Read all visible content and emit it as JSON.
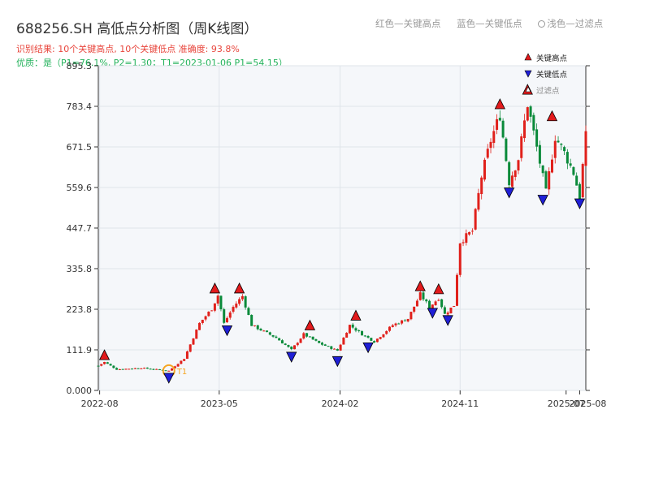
{
  "header": {
    "title": "688256.SH 高低点分析图（周K线图）",
    "result_line": "识别结果: 10个关键高点, 10个关键低点   准确度: 93.8%",
    "quality_line": "优质：是（P1=76.1%, P2=1.30；T1=2023-01-06 P1=54.15）"
  },
  "top_legend": {
    "red": "红色—关键高点",
    "blue": "蓝色—关键低点",
    "light": "浅色—过滤点"
  },
  "chart_legend": {
    "high": "关键高点",
    "low": "关键低点",
    "filtered": "过滤点"
  },
  "t1_label": "T1",
  "colors": {
    "up": "#e0201b",
    "down": "#0a8a3a",
    "high_marker": "#e31a1c",
    "low_marker": "#1f1fd6",
    "t1_ring": "#f5a623",
    "plot_bg": "#f5f7fa"
  },
  "chart_data": {
    "type": "candlestick",
    "period": "weekly",
    "ylim": [
      0,
      895.3
    ],
    "yticks": [
      "0.000",
      "111.9",
      "223.8",
      "335.8",
      "447.7",
      "559.6",
      "671.5",
      "783.4",
      "895.3"
    ],
    "xticks": [
      "2022-08",
      "2023-05",
      "2024-02",
      "2024-11",
      "2025-07",
      "2025-08"
    ],
    "x_start": "2022-07-29",
    "x_end": "2025-08-15",
    "anchors": [
      [
        "2022-07-29",
        68
      ],
      [
        "2022-08-12",
        78
      ],
      [
        "2022-09-09",
        58
      ],
      [
        "2022-11-04",
        62
      ],
      [
        "2023-01-06",
        54
      ],
      [
        "2023-02-10",
        88
      ],
      [
        "2023-03-17",
        185
      ],
      [
        "2023-04-14",
        225
      ],
      [
        "2023-04-28",
        262
      ],
      [
        "2023-05-12",
        185
      ],
      [
        "2023-06-02",
        230
      ],
      [
        "2023-06-23",
        260
      ],
      [
        "2023-07-14",
        180
      ],
      [
        "2023-09-08",
        145
      ],
      [
        "2023-10-13",
        112
      ],
      [
        "2023-11-10",
        155
      ],
      [
        "2023-12-15",
        130
      ],
      [
        "2024-01-26",
        110
      ],
      [
        "2024-02-23",
        180
      ],
      [
        "2024-03-22",
        155
      ],
      [
        "2024-04-19",
        135
      ],
      [
        "2024-05-31",
        180
      ],
      [
        "2024-07-05",
        198
      ],
      [
        "2024-08-02",
        265
      ],
      [
        "2024-08-23",
        230
      ],
      [
        "2024-09-13",
        255
      ],
      [
        "2024-09-27",
        210
      ],
      [
        "2024-10-18",
        235
      ],
      [
        "2024-11-01",
        410
      ],
      [
        "2024-11-29",
        440
      ],
      [
        "2024-12-20",
        590
      ],
      [
        "2025-01-10",
        690
      ],
      [
        "2025-01-31",
        760
      ],
      [
        "2025-02-21",
        575
      ],
      [
        "2025-03-14",
        640
      ],
      [
        "2025-04-04",
        790
      ],
      [
        "2025-04-25",
        670
      ],
      [
        "2025-05-16",
        545
      ],
      [
        "2025-06-06",
        700
      ],
      [
        "2025-06-27",
        655
      ],
      [
        "2025-07-18",
        600
      ],
      [
        "2025-08-01",
        535
      ],
      [
        "2025-08-08",
        620
      ],
      [
        "2025-08-15",
        700
      ]
    ],
    "key_highs": [
      {
        "date": "2022-08-12",
        "value": 78
      },
      {
        "date": "2023-04-21",
        "value": 262
      },
      {
        "date": "2023-06-16",
        "value": 262
      },
      {
        "date": "2023-11-24",
        "value": 160
      },
      {
        "date": "2024-03-08",
        "value": 187
      },
      {
        "date": "2024-08-02",
        "value": 268
      },
      {
        "date": "2024-09-13",
        "value": 260
      },
      {
        "date": "2025-01-31",
        "value": 770
      },
      {
        "date": "2025-04-04",
        "value": 810
      },
      {
        "date": "2025-05-30",
        "value": 737
      }
    ],
    "key_lows": [
      {
        "date": "2023-01-06",
        "value": 54
      },
      {
        "date": "2023-05-19",
        "value": 185
      },
      {
        "date": "2023-10-13",
        "value": 112
      },
      {
        "date": "2024-01-26",
        "value": 100
      },
      {
        "date": "2024-04-05",
        "value": 138
      },
      {
        "date": "2024-08-30",
        "value": 233
      },
      {
        "date": "2024-10-04",
        "value": 213
      },
      {
        "date": "2025-02-21",
        "value": 565
      },
      {
        "date": "2025-05-09",
        "value": 545
      },
      {
        "date": "2025-08-01",
        "value": 535
      }
    ]
  }
}
